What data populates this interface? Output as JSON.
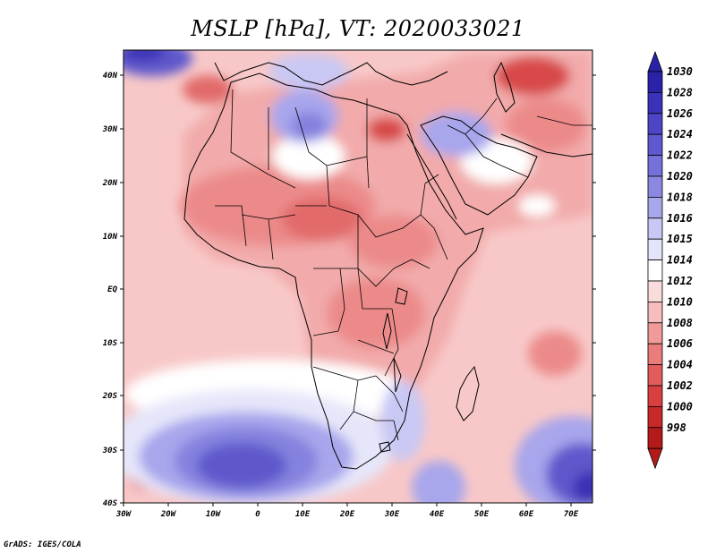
{
  "title": "MSLP [hPa], VT: 2020033021",
  "credit": "GrADS: IGES/COLA",
  "lat_labels": [
    "40N",
    "30N",
    "20N",
    "10N",
    "EQ",
    "10S",
    "20S",
    "30S",
    "40S"
  ],
  "lon_labels": [
    "30W",
    "20W",
    "10W",
    "0",
    "10E",
    "20E",
    "30E",
    "40E",
    "50E",
    "60E",
    "70E"
  ],
  "colorbar": {
    "levels": [
      "1030",
      "1028",
      "1026",
      "1024",
      "1022",
      "1020",
      "1018",
      "1016",
      "1015",
      "1014",
      "1012",
      "1010",
      "1008",
      "1006",
      "1004",
      "1002",
      "1000",
      "998"
    ],
    "colors": [
      "#2a22a8",
      "#3a32b8",
      "#4d45c6",
      "#6058d0",
      "#7670da",
      "#8c88e2",
      "#a8a6ec",
      "#c9c8f4",
      "#e4e4fa",
      "#ffffff",
      "#fbdcdc",
      "#f7bcbc",
      "#f09a9a",
      "#ea7c7c",
      "#e35c5c",
      "#d84040",
      "#c72828",
      "#b51a1a"
    ]
  },
  "map_colors": {
    "ocean_base": "#f8c8c8",
    "land_base": "#f2aaaa",
    "low_medium": "#ec8a8a",
    "low_strong": "#e26a6a",
    "low_deep": "#d84a4a",
    "high_light": "#e6e6fa",
    "high_1": "#c9c8f4",
    "high_2": "#a8a6ec",
    "high_3": "#8482de",
    "high_4": "#5f58cc",
    "high_5": "#3a30b4",
    "neutral": "#ffffff",
    "border": "#000000"
  }
}
